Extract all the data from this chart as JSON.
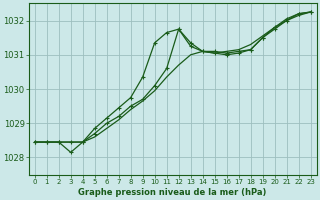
{
  "background_color": "#cce8e8",
  "line_color": "#1a5c1a",
  "grid_color": "#9dbfbf",
  "xlabel": "Graphe pression niveau de la mer (hPa)",
  "xlim": [
    -0.5,
    23.5
  ],
  "ylim": [
    1027.5,
    1032.5
  ],
  "yticks": [
    1028,
    1029,
    1030,
    1031,
    1032
  ],
  "xticks": [
    0,
    1,
    2,
    3,
    4,
    5,
    6,
    7,
    8,
    9,
    10,
    11,
    12,
    13,
    14,
    15,
    16,
    17,
    18,
    19,
    20,
    21,
    22,
    23
  ],
  "series1_x": [
    0,
    1,
    2,
    3,
    4,
    5,
    6,
    7,
    8,
    9,
    10,
    11,
    12,
    13,
    14,
    15,
    16,
    17,
    18,
    19,
    20,
    21,
    22,
    23
  ],
  "series1_y": [
    1028.45,
    1028.45,
    1028.45,
    1028.15,
    1028.45,
    1028.85,
    1029.15,
    1029.45,
    1029.75,
    1030.35,
    1031.35,
    1031.65,
    1031.75,
    1031.35,
    1031.1,
    1031.1,
    1031.05,
    1031.1,
    1031.15,
    1031.5,
    1031.8,
    1032.05,
    1032.2,
    1032.25
  ],
  "series2_x": [
    0,
    1,
    2,
    3,
    4,
    5,
    6,
    7,
    8,
    9,
    10,
    11,
    12,
    13,
    14,
    15,
    16,
    17,
    18,
    19,
    20,
    21,
    22,
    23
  ],
  "series2_y": [
    1028.45,
    1028.45,
    1028.45,
    1028.45,
    1028.45,
    1028.7,
    1029.0,
    1029.2,
    1029.5,
    1029.7,
    1030.1,
    1030.6,
    1031.75,
    1031.25,
    1031.1,
    1031.05,
    1031.0,
    1031.05,
    1031.15,
    1031.5,
    1031.75,
    1032.0,
    1032.2,
    1032.25
  ],
  "series3_x": [
    0,
    1,
    2,
    3,
    4,
    5,
    6,
    7,
    8,
    9,
    10,
    11,
    12,
    13,
    14,
    15,
    16,
    17,
    18,
    19,
    20,
    21,
    22,
    23
  ],
  "series3_y": [
    1028.45,
    1028.45,
    1028.45,
    1028.45,
    1028.45,
    1028.6,
    1028.85,
    1029.1,
    1029.4,
    1029.65,
    1029.95,
    1030.35,
    1030.7,
    1031.0,
    1031.1,
    1031.05,
    1031.1,
    1031.15,
    1031.3,
    1031.55,
    1031.8,
    1032.0,
    1032.15,
    1032.25
  ]
}
